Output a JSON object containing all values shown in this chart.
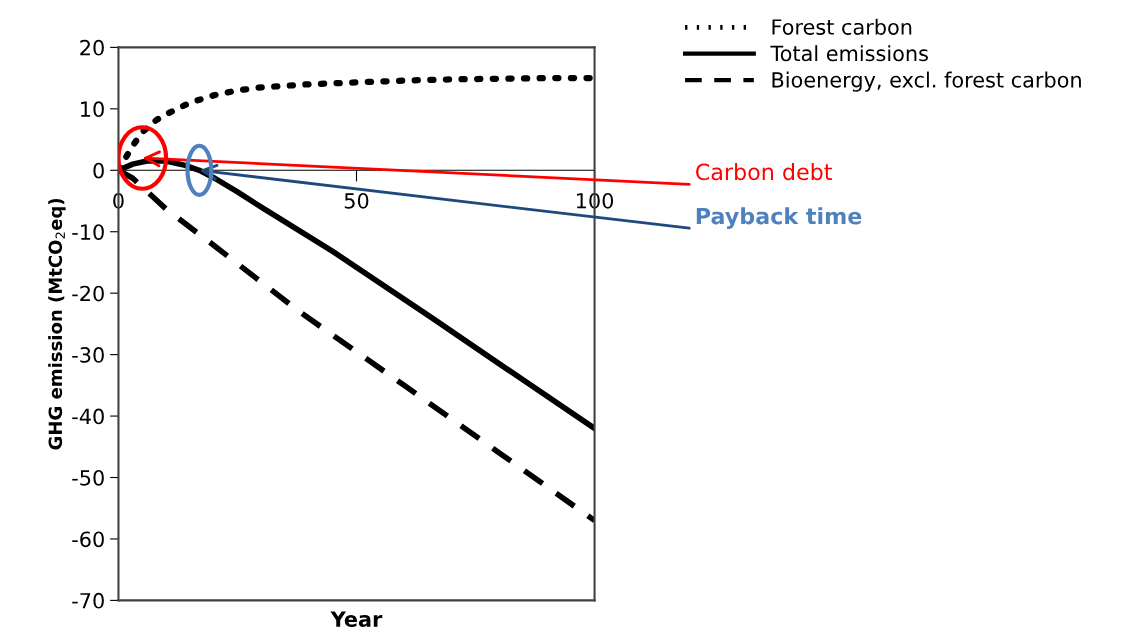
{
  "chart_data": {
    "type": "line",
    "xlabel": "Year",
    "ylabel": "GHG emission (MtCO$_{2}$eq)",
    "xlim": [
      0,
      100
    ],
    "ylim": [
      -70,
      20
    ],
    "xticks": [
      0,
      50,
      100
    ],
    "yticks": [
      -70,
      -60,
      -50,
      -40,
      -30,
      -20,
      -10,
      0,
      10,
      20
    ],
    "grid": false,
    "legend": "top right",
    "series": [
      {
        "name": "Forest carbon",
        "color": "#000000",
        "line_style": "dotted",
        "x": [
          0,
          3,
          5,
          8,
          10,
          15,
          20,
          25,
          30,
          40,
          50,
          60,
          70,
          80,
          90,
          100
        ],
        "values": [
          0,
          4,
          6.2,
          8.2,
          9.1,
          11,
          12.2,
          13,
          13.5,
          14,
          14.3,
          14.6,
          14.8,
          14.9,
          15,
          15
        ]
      },
      {
        "name": "Total emissions",
        "color": "#000000",
        "line_style": "solid",
        "x": [
          0,
          3,
          6,
          10,
          14,
          17,
          20,
          25,
          30,
          45,
          66,
          80,
          100
        ],
        "values": [
          0,
          1,
          1.5,
          1.5,
          0.8,
          0,
          -1.2,
          -3.5,
          -6,
          -13.2,
          -24.1,
          -31.5,
          -42
        ]
      },
      {
        "name": "Bioenergy, excl. forest carbon",
        "color": "#000000",
        "line_style": "dashed",
        "x": [
          0,
          3,
          10,
          20,
          38,
          60,
          80,
          100
        ],
        "values": [
          0,
          -1.3,
          -6.3,
          -12.2,
          -23,
          -35,
          -46,
          -57
        ]
      }
    ],
    "annotations": [
      {
        "text": "Carbon debt",
        "x": 5,
        "y": 2
      },
      {
        "text": "Payback time",
        "x": 17,
        "y": 0
      }
    ]
  }
}
